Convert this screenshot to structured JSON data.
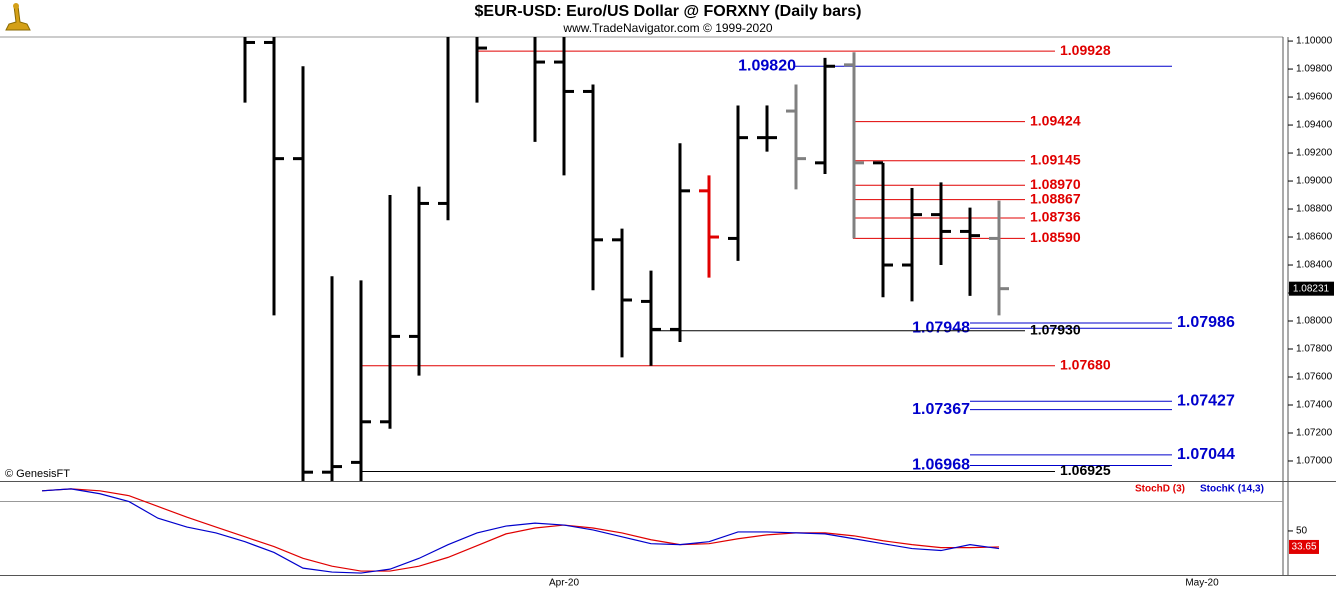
{
  "chart_data": [
    {
      "type": "ohlc",
      "title": "$EUR-USD:  Euro/US Dollar @ FORXNY  (Daily bars)",
      "subtitle": "www.TradeNavigator.com © 1999-2020",
      "source": "© GenesisFT",
      "categories": [
        null,
        null,
        null,
        null,
        null,
        null,
        null,
        null,
        null,
        null,
        null,
        null,
        null,
        null,
        null,
        null,
        null,
        null,
        "Apr-20",
        null,
        null,
        null,
        null,
        null,
        null,
        null,
        null,
        null,
        null,
        null,
        null,
        null,
        null,
        null,
        null,
        null,
        null,
        null,
        null,
        null,
        "May-20"
      ],
      "open": [
        null,
        null,
        null,
        null,
        null,
        null,
        null,
        1.1005,
        1.0999,
        1.0916,
        1.0692,
        1.0699,
        1.0728,
        1.0789,
        1.0884,
        1.1008,
        null,
        1.1008,
        1.0985,
        1.0964,
        1.0858,
        1.0814,
        1.0794,
        1.0893,
        1.0859,
        1.0931,
        1.095,
        1.0913,
        1.0983,
        1.0913,
        1.084,
        1.0876,
        1.0864,
        1.0859,
        null,
        null,
        null,
        null,
        null,
        null,
        null
      ],
      "high": [
        null,
        null,
        null,
        null,
        null,
        null,
        null,
        1.103,
        1.103,
        1.0982,
        1.0832,
        1.0829,
        1.089,
        1.0896,
        1.103,
        1.103,
        null,
        1.103,
        1.103,
        1.0969,
        1.0866,
        1.0836,
        1.0927,
        1.0904,
        1.0954,
        1.0954,
        1.0969,
        1.0988,
        1.0992,
        1.0913,
        1.0895,
        1.0899,
        1.0881,
        1.0886,
        null,
        null,
        null,
        null,
        null,
        null,
        null
      ],
      "low": [
        null,
        null,
        null,
        null,
        null,
        null,
        null,
        1.0956,
        1.0804,
        1.068,
        1.068,
        1.068,
        1.0723,
        1.0761,
        1.0872,
        1.0956,
        null,
        1.0928,
        1.0904,
        1.0822,
        1.0774,
        1.0768,
        1.0785,
        1.0831,
        1.0843,
        1.0921,
        1.0894,
        1.0905,
        1.0859,
        1.0817,
        1.0814,
        1.084,
        1.0818,
        1.0804,
        null,
        null,
        null,
        null,
        null,
        null,
        null
      ],
      "close": [
        null,
        null,
        null,
        null,
        null,
        null,
        null,
        1.0999,
        1.0916,
        1.0692,
        1.0696,
        1.0728,
        1.0789,
        1.0884,
        1.1008,
        1.0995,
        null,
        1.0985,
        1.0964,
        1.0858,
        1.0815,
        1.0794,
        1.0893,
        1.086,
        1.0931,
        1.0931,
        1.0916,
        1.0982,
        1.0913,
        1.084,
        1.0876,
        1.0864,
        1.0861,
        1.08231,
        null,
        null,
        null,
        null,
        null,
        null,
        null
      ],
      "colors": [
        null,
        null,
        null,
        null,
        null,
        null,
        null,
        "#000000",
        "#000000",
        "#000000",
        "#000000",
        "#000000",
        "#000000",
        "#000000",
        "#000000",
        "#000000",
        null,
        "#000000",
        "#000000",
        "#000000",
        "#000000",
        "#000000",
        "#000000",
        "#e00000",
        "#000000",
        "#000000",
        "#808080",
        "#000000",
        "#808080",
        "#000000",
        "#000000",
        "#000000",
        "#000000",
        "#808080",
        null,
        null,
        null,
        null,
        null,
        null,
        null
      ],
      "last_value": 1.08231,
      "ylim": [
        1.06857,
        1.10029
      ],
      "yticks": [
        {
          "value": 1.1,
          "label": "1.10000"
        },
        {
          "value": 1.098,
          "label": "1.09800"
        },
        {
          "value": 1.096,
          "label": "1.09600"
        },
        {
          "value": 1.094,
          "label": "1.09400"
        },
        {
          "value": 1.092,
          "label": "1.09200"
        },
        {
          "value": 1.09,
          "label": "1.09000"
        },
        {
          "value": 1.088,
          "label": "1.08800"
        },
        {
          "value": 1.086,
          "label": "1.08600"
        },
        {
          "value": 1.084,
          "label": "1.08400"
        },
        {
          "value": 1.082,
          "label": "1.08200"
        },
        {
          "value": 1.08,
          "label": "1.08000"
        },
        {
          "value": 1.078,
          "label": "1.07800"
        },
        {
          "value": 1.076,
          "label": "1.07600"
        },
        {
          "value": 1.074,
          "label": "1.07400"
        },
        {
          "value": 1.072,
          "label": "1.07200"
        },
        {
          "value": 1.07,
          "label": "1.07000"
        }
      ],
      "levels": [
        {
          "value": 1.09928,
          "label": "1.09928",
          "color": "#e00000"
        },
        {
          "value": 1.0982,
          "label": "1.09820",
          "color": "#0000cc"
        },
        {
          "value": 1.09424,
          "label": "1.09424",
          "color": "#e00000"
        },
        {
          "value": 1.09145,
          "label": "1.09145",
          "color": "#e00000"
        },
        {
          "value": 1.0897,
          "label": "1.08970",
          "color": "#e00000"
        },
        {
          "value": 1.08867,
          "label": "1.08867",
          "color": "#e00000"
        },
        {
          "value": 1.08736,
          "label": "1.08736",
          "color": "#e00000"
        },
        {
          "value": 1.0859,
          "label": "1.08590",
          "color": "#e00000"
        },
        {
          "value": 1.07986,
          "label": "1.07986",
          "color": "#0000cc"
        },
        {
          "value": 1.07948,
          "label": "1.07948",
          "color": "#0000cc"
        },
        {
          "value": 1.0793,
          "label": "1.07930",
          "color": "#000000"
        },
        {
          "value": 1.0768,
          "label": "1.07680",
          "color": "#e00000"
        },
        {
          "value": 1.07427,
          "label": "1.07427",
          "color": "#0000cc"
        },
        {
          "value": 1.07367,
          "label": "1.07367",
          "color": "#0000cc"
        },
        {
          "value": 1.07044,
          "label": "1.07044",
          "color": "#0000cc"
        },
        {
          "value": 1.06968,
          "label": "1.06968",
          "color": "#0000cc"
        },
        {
          "value": 1.06925,
          "label": "1.06925",
          "color": "#000000"
        }
      ]
    },
    {
      "type": "line",
      "categories": [
        null,
        null,
        null,
        null,
        null,
        null,
        null,
        null,
        null,
        null,
        null,
        null,
        null,
        null,
        null,
        null,
        null,
        null,
        "Apr-20",
        null,
        null,
        null,
        null,
        null,
        null,
        null,
        null,
        null,
        null,
        null,
        null,
        null,
        null,
        null,
        null,
        null,
        null,
        null,
        null,
        null,
        "May-20"
      ],
      "series": [
        {
          "name": "StochD (3)",
          "color": "#e00000",
          "values": [
            91,
            93,
            91,
            86,
            75,
            64,
            54,
            44,
            34,
            22,
            14,
            9,
            9,
            14,
            23,
            35,
            47,
            53,
            56,
            53,
            48,
            41,
            36,
            37,
            42,
            46,
            48,
            48,
            45,
            40,
            36,
            33,
            33,
            33.65,
            null,
            null,
            null,
            null,
            null,
            null,
            null
          ]
        },
        {
          "name": "StochK (14,3)",
          "color": "#0000cc",
          "values": [
            91,
            93,
            88,
            80,
            63,
            54,
            48,
            39,
            28,
            12,
            8,
            7,
            11,
            22,
            36,
            48,
            55,
            58,
            56,
            51,
            44,
            37,
            36,
            39,
            49,
            49,
            48,
            47,
            42,
            37,
            32,
            30,
            36,
            32,
            null,
            null,
            null,
            null,
            null,
            null,
            null
          ]
        }
      ],
      "last_value": 33.65,
      "ylim": [
        5,
        100
      ],
      "yticks": [
        50
      ]
    }
  ]
}
